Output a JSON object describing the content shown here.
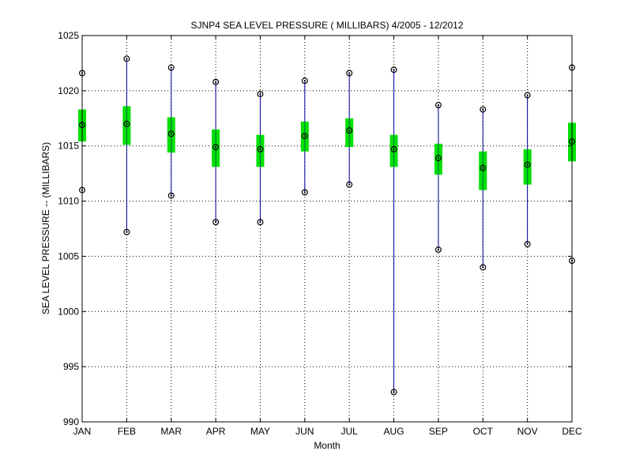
{
  "chart_data": {
    "type": "box",
    "title": "SJNP4  SEA LEVEL PRESSURE ( MILLIBARS) 4/2005 - 12/2012",
    "xlabel": "Month",
    "ylabel": "SEA LEVEL PRESSURE -- (MILLIBARS)",
    "ylim": [
      990,
      1025
    ],
    "yticks": [
      990,
      995,
      1000,
      1005,
      1010,
      1015,
      1020,
      1025
    ],
    "grid": true,
    "categories": [
      "JAN",
      "FEB",
      "MAR",
      "APR",
      "MAY",
      "JUN",
      "JUL",
      "AUG",
      "SEP",
      "OCT",
      "NOV",
      "DEC"
    ],
    "max": [
      1021.6,
      1022.9,
      1022.1,
      1020.8,
      1019.7,
      1020.9,
      1021.6,
      1021.9,
      1018.7,
      1018.3,
      1019.6,
      1022.1
    ],
    "q3": [
      1018.3,
      1018.6,
      1017.6,
      1016.5,
      1016.0,
      1017.2,
      1017.5,
      1016.0,
      1015.2,
      1014.5,
      1014.7,
      1017.1
    ],
    "mean": [
      1016.9,
      1017.0,
      1016.1,
      1014.9,
      1014.7,
      1015.9,
      1016.4,
      1014.7,
      1013.9,
      1013.0,
      1013.3,
      1015.4
    ],
    "q1": [
      1015.4,
      1015.1,
      1014.4,
      1013.1,
      1013.1,
      1014.5,
      1014.9,
      1013.1,
      1012.4,
      1011.0,
      1011.5,
      1013.6
    ],
    "min": [
      1011.0,
      1007.2,
      1010.5,
      1008.1,
      1008.1,
      1010.8,
      1011.5,
      992.7,
      1005.6,
      1004.0,
      1006.1,
      1004.6
    ],
    "colors": {
      "whisker": "#0000a0",
      "box": "#00e000",
      "marker": "#000000",
      "grid": "#000000"
    }
  }
}
